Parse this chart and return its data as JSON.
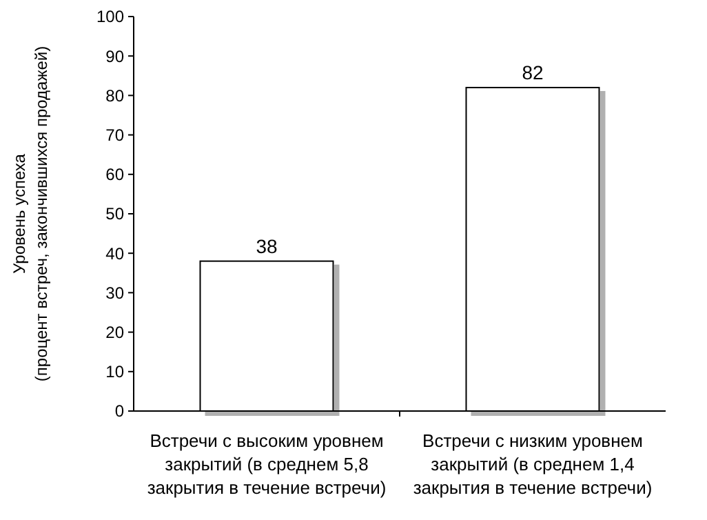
{
  "chart_data": {
    "type": "bar",
    "ylabel": "Уровень успеха (процент встреч, закончившихся продажей)",
    "categories": [
      "Встречи с высоким уровнем закрытий (в среднем 5,8 закрытия в течение встречи)",
      "Встречи с низким уровнем закрытий (в среднем 1,4 закрытия в течение встречи)"
    ],
    "values": [
      38,
      82
    ],
    "color": "#ffffff",
    "data_labels": true,
    "ylim": [
      0,
      100
    ],
    "yticks": [
      0,
      10,
      20,
      30,
      40,
      50,
      60,
      70,
      80,
      90,
      100
    ],
    "grid": false
  }
}
